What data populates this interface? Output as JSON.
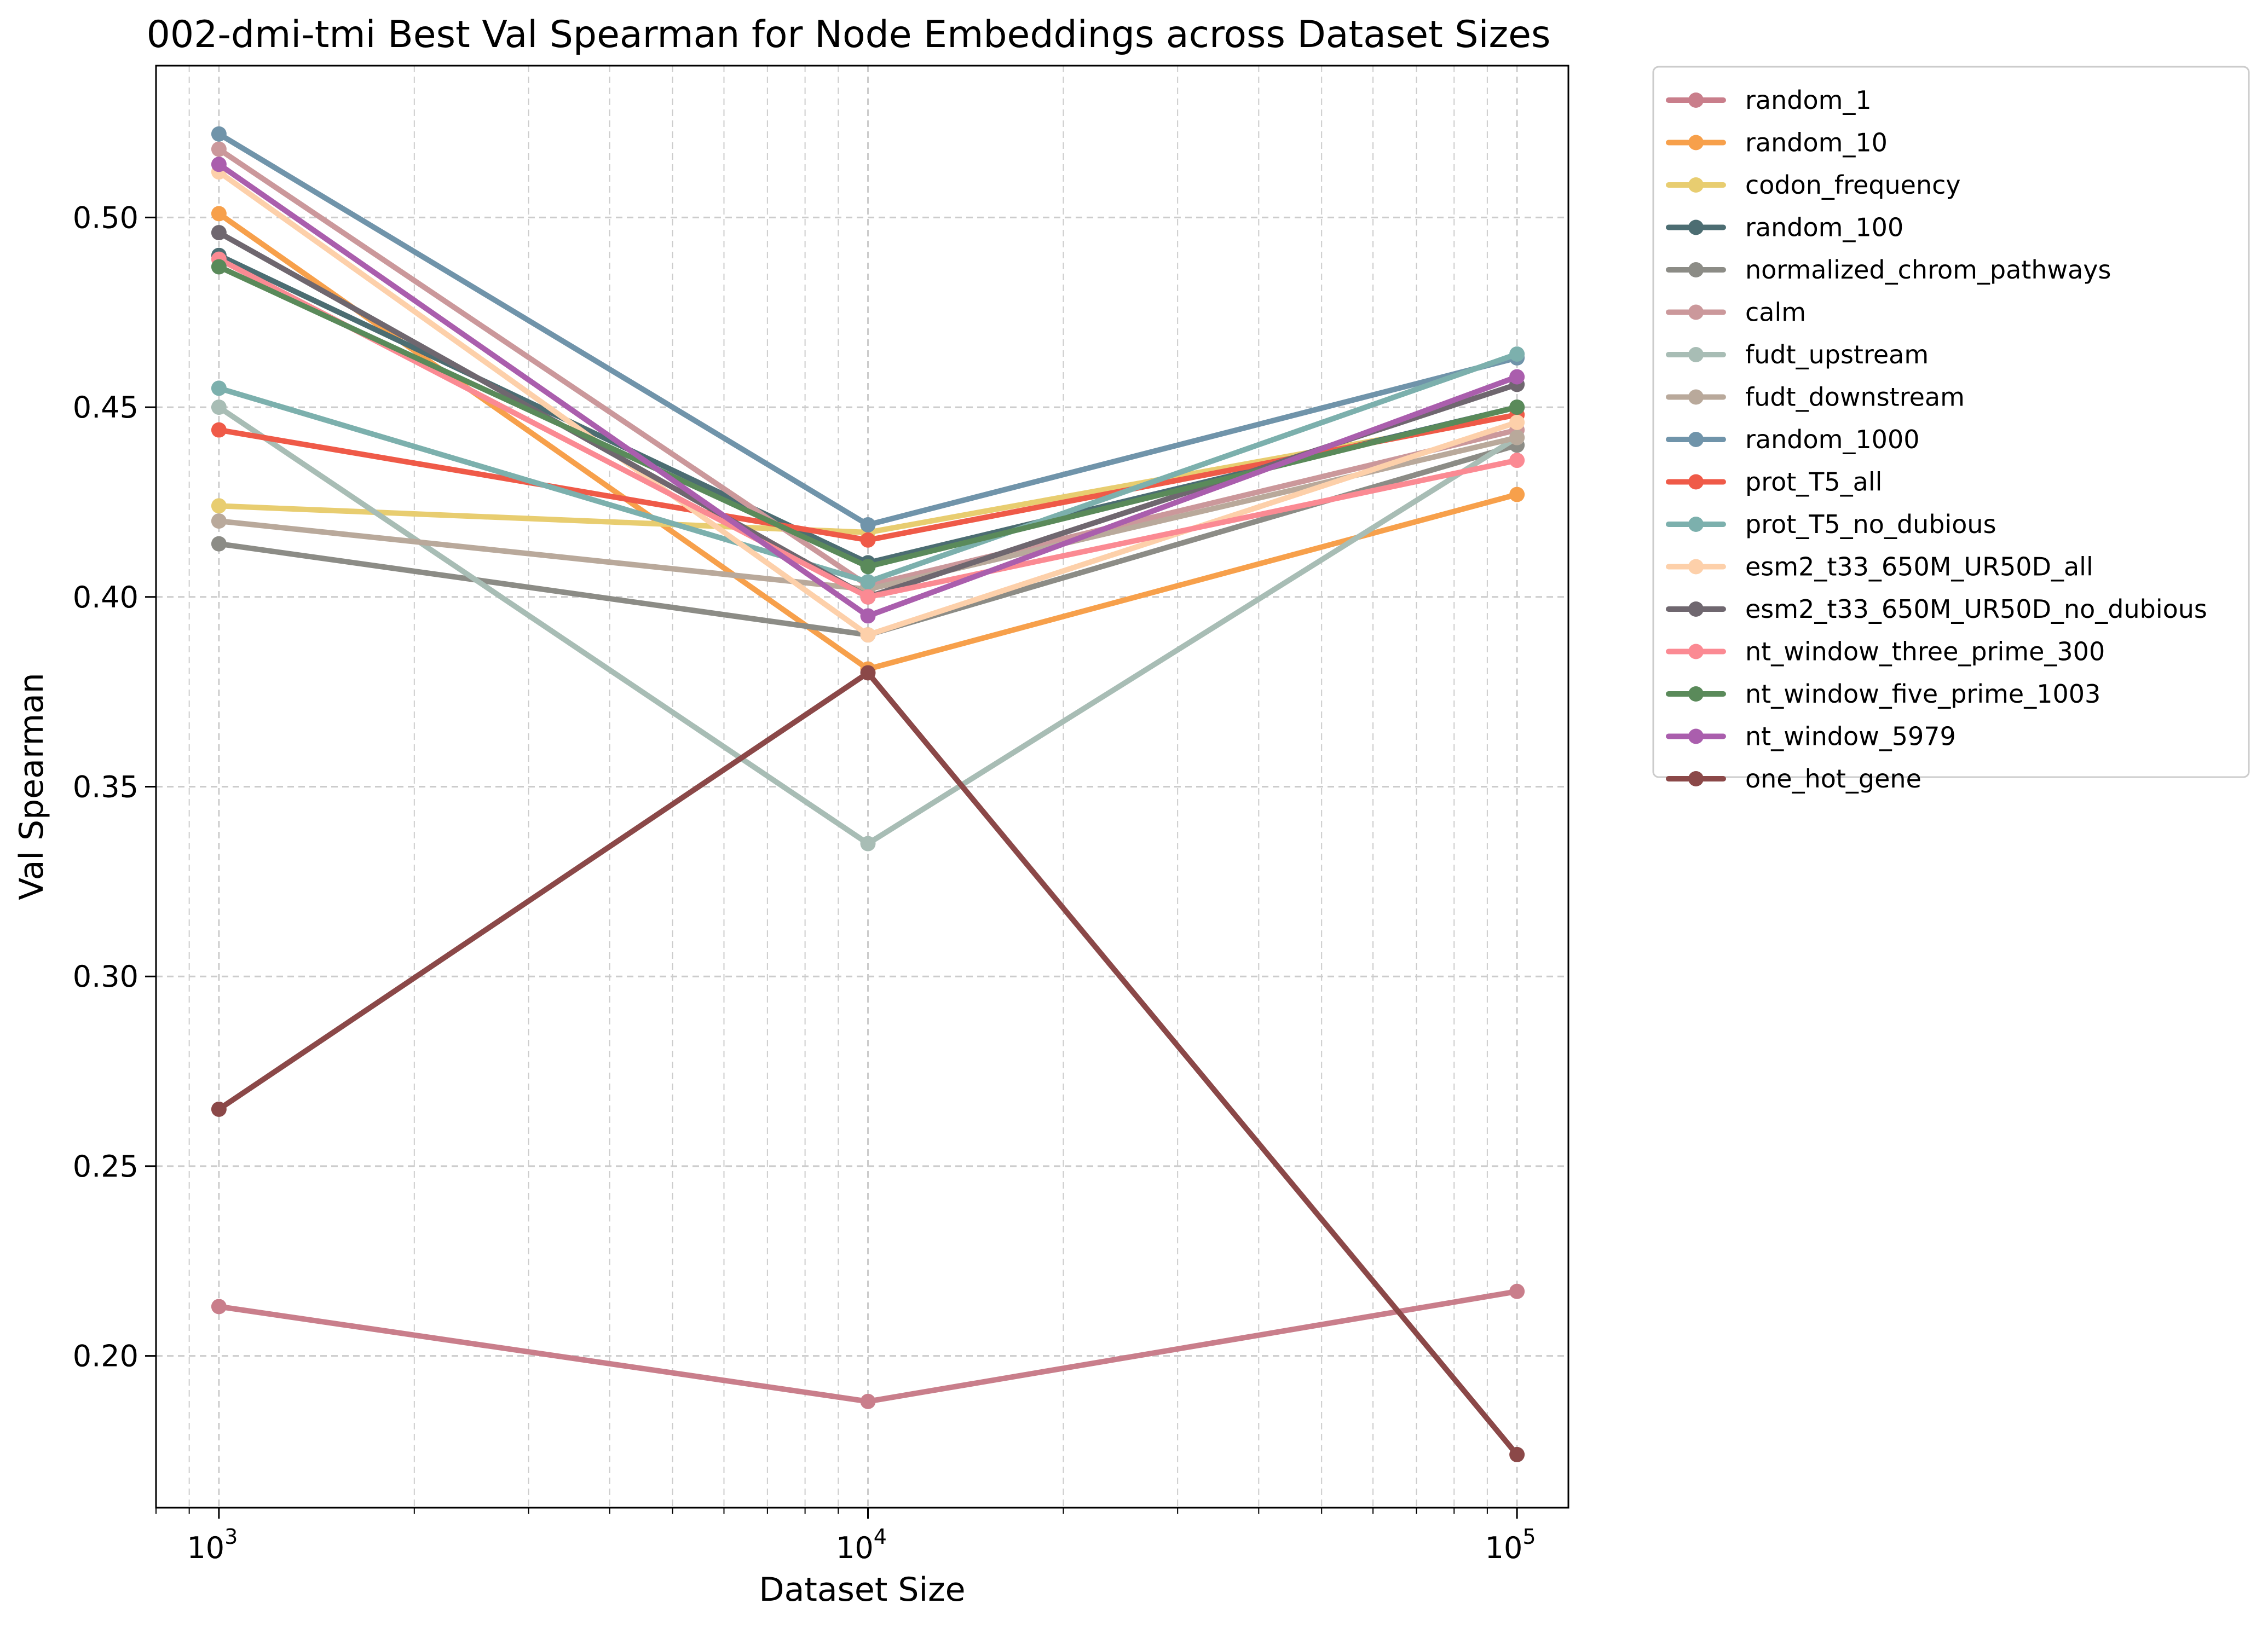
{
  "chart_data": {
    "type": "line",
    "title": "002-dmi-tmi Best Val Spearman for Node Embeddings across Dataset Sizes",
    "xlabel": "Dataset Size",
    "ylabel": "Val Spearman",
    "xscale": "log",
    "xlim": [
      800,
      120000
    ],
    "ylim": [
      0.16,
      0.54
    ],
    "x": [
      1000,
      10000,
      100000
    ],
    "x_ticks": [
      {
        "value": 1000,
        "base": "10",
        "exp": "3"
      },
      {
        "value": 10000,
        "base": "10",
        "exp": "4"
      },
      {
        "value": 100000,
        "base": "10",
        "exp": "5"
      }
    ],
    "y_ticks": [
      "0.20",
      "0.25",
      "0.30",
      "0.35",
      "0.40",
      "0.45",
      "0.50"
    ],
    "y_tick_values": [
      0.2,
      0.25,
      0.3,
      0.35,
      0.4,
      0.45,
      0.5
    ],
    "grid": true,
    "legend_position": "outside-right",
    "series": [
      {
        "name": "random_1",
        "color": "#c97e8b",
        "values": [
          0.213,
          0.188,
          0.217
        ]
      },
      {
        "name": "random_10",
        "color": "#f7a04b",
        "values": [
          0.501,
          0.381,
          0.427
        ]
      },
      {
        "name": "codon_frequency",
        "color": "#e8cd70",
        "values": [
          0.424,
          0.417,
          0.448
        ]
      },
      {
        "name": "random_100",
        "color": "#4c6d72",
        "values": [
          0.49,
          0.409,
          0.45
        ]
      },
      {
        "name": "normalized_chrom_pathways",
        "color": "#8c8c86",
        "values": [
          0.414,
          0.39,
          0.44
        ]
      },
      {
        "name": "calm",
        "color": "#cb989b",
        "values": [
          0.518,
          0.403,
          0.444
        ]
      },
      {
        "name": "fudt_upstream",
        "color": "#a8bdb5",
        "values": [
          0.45,
          0.335,
          0.442
        ]
      },
      {
        "name": "fudt_downstream",
        "color": "#b9a99b",
        "values": [
          0.42,
          0.402,
          0.442
        ]
      },
      {
        "name": "random_1000",
        "color": "#7094aa",
        "values": [
          0.522,
          0.419,
          0.463
        ]
      },
      {
        "name": "prot_T5_all",
        "color": "#ef5a48",
        "values": [
          0.444,
          0.415,
          0.448
        ]
      },
      {
        "name": "prot_T5_no_dubious",
        "color": "#7cb0ad",
        "values": [
          0.455,
          0.404,
          0.464
        ]
      },
      {
        "name": "esm2_t33_650M_UR50D_all",
        "color": "#fdd0aa",
        "values": [
          0.512,
          0.39,
          0.446
        ]
      },
      {
        "name": "esm2_t33_650M_UR50D_no_dubious",
        "color": "#6f676f",
        "values": [
          0.496,
          0.4,
          0.456
        ]
      },
      {
        "name": "nt_window_three_prime_300",
        "color": "#fb8a93",
        "values": [
          0.489,
          0.4,
          0.436
        ]
      },
      {
        "name": "nt_window_five_prime_1003",
        "color": "#5a8a5a",
        "values": [
          0.487,
          0.408,
          0.45
        ]
      },
      {
        "name": "nt_window_5979",
        "color": "#aa5ead",
        "values": [
          0.514,
          0.395,
          0.458
        ]
      },
      {
        "name": "one_hot_gene",
        "color": "#8b4848",
        "values": [
          0.265,
          0.38,
          0.174
        ]
      }
    ]
  }
}
